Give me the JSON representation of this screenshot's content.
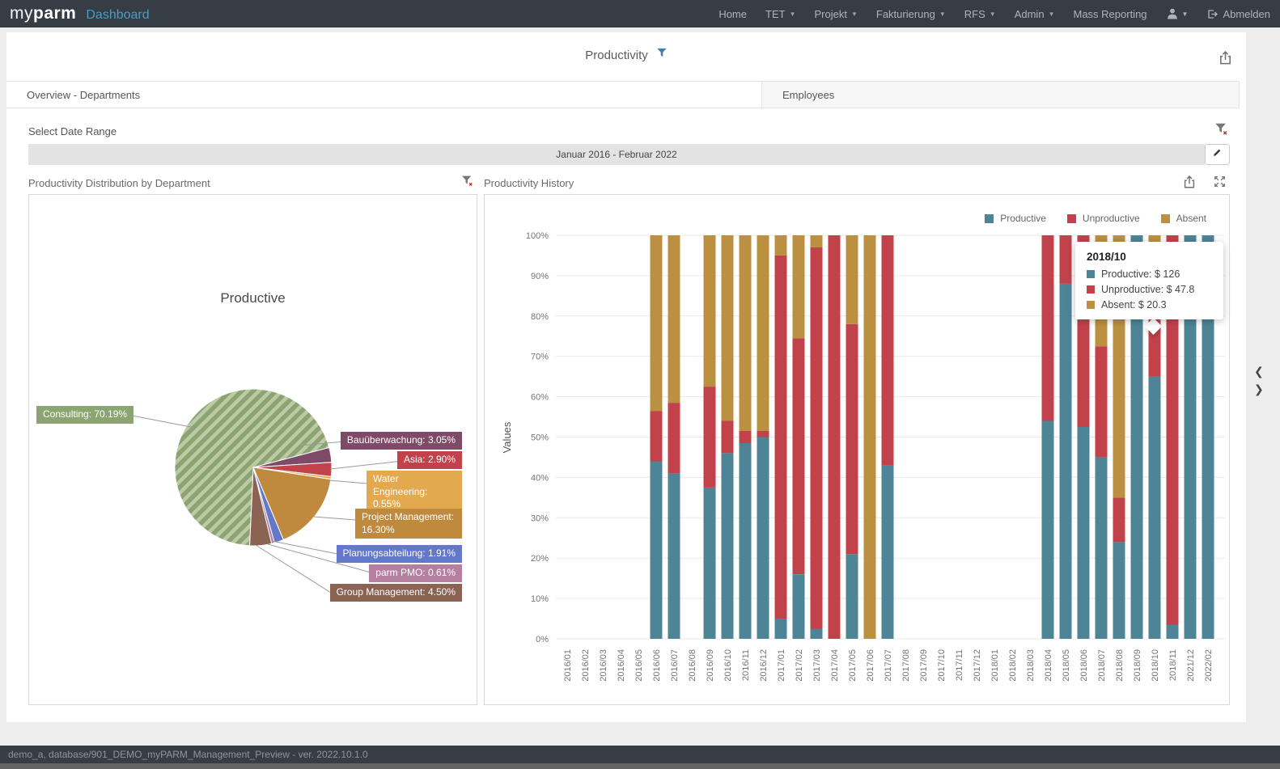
{
  "colors": {
    "navbar_bg": "#363d44",
    "accent_blue": "#4a9cc6",
    "productive": "#4d8496",
    "unproductive": "#c2424c",
    "absent": "#bb9040",
    "grid": "#e9e9e9"
  },
  "navbar": {
    "logo_my": "my",
    "logo_parm": "parm",
    "logo_product": "Dashboard",
    "items": [
      {
        "label": "Home",
        "caret": false
      },
      {
        "label": "TET",
        "caret": true
      },
      {
        "label": "Projekt",
        "caret": true
      },
      {
        "label": "Fakturierung",
        "caret": true
      },
      {
        "label": "RFS",
        "caret": true
      },
      {
        "label": "Admin",
        "caret": true
      },
      {
        "label": "Mass Reporting",
        "caret": false
      }
    ],
    "logout_label": "Abmelden"
  },
  "page": {
    "title": "Productivity"
  },
  "tabs": [
    {
      "label": "Overview - Departments",
      "active": true
    },
    {
      "label": "Employees",
      "active": false
    }
  ],
  "filter_bar": {
    "label": "Select Date Range",
    "value": "Januar 2016 - Februar 2022"
  },
  "panels": {
    "pie": {
      "title": "Productivity Distribution by Department"
    },
    "history": {
      "title": "Productivity History"
    }
  },
  "tooltip": {
    "title": "2018/10",
    "rows": [
      {
        "text": "Productive: $ 126",
        "color": "#4d8496"
      },
      {
        "text": "Unproductive: $ 47.8",
        "color": "#c2424c"
      },
      {
        "text": "Absent: $ 20.3",
        "color": "#bb9040"
      }
    ]
  },
  "side_nav": {
    "prev": "❮",
    "next": "❯"
  },
  "status_bar": {
    "text": "demo_a, database/901_DEMO_myPARM_Management_Preview - ver. 2022.10.1.0"
  },
  "chart_data": [
    {
      "type": "pie",
      "title": "Productive",
      "start_angle_deg_cw_from_top": 75.3,
      "slices": [
        {
          "name": "Bauüberwachung",
          "pct": 3.05,
          "label": "Bauüberwachung: 3.05%",
          "color": "#7e4a67"
        },
        {
          "name": "Asia",
          "pct": 2.9,
          "label": "Asia: 2.90%",
          "color": "#c2424c"
        },
        {
          "name": "Water Engineering",
          "pct": 0.55,
          "label": "Water Engineering: 0.55%",
          "color": "#e2a94f"
        },
        {
          "name": "Project Management",
          "pct": 16.3,
          "label": "Project Management: 16.30%",
          "color": "#c08a3e"
        },
        {
          "name": "Planungsabteilung",
          "pct": 1.91,
          "label": "Planungsabteilung: 1.91%",
          "color": "#6378c8"
        },
        {
          "name": "parm PMO",
          "pct": 0.61,
          "label": "parm PMO: 0.61%",
          "color": "#b57fa0"
        },
        {
          "name": "Group Management",
          "pct": 4.5,
          "label": "Group Management: 4.50%",
          "color": "#8a6352"
        },
        {
          "name": "Consulting",
          "pct": 70.19,
          "label": "Consulting: 70.19%",
          "color": "#8ba471",
          "hatch": true,
          "hatch_color": "#bccaa5"
        }
      ]
    },
    {
      "type": "bar",
      "stacked": true,
      "normalized_percent": true,
      "title": "Productivity History",
      "ylabel": "Values",
      "ylim": [
        0,
        100
      ],
      "ytick_step": 10,
      "ytick_suffix": "%",
      "legend_position": "top-right",
      "categories": [
        "2016/01",
        "2016/02",
        "2016/03",
        "2016/04",
        "2016/05",
        "2016/06",
        "2016/07",
        "2016/08",
        "2016/09",
        "2016/10",
        "2016/11",
        "2016/12",
        "2017/01",
        "2017/02",
        "2017/03",
        "2017/04",
        "2017/05",
        "2017/06",
        "2017/07",
        "2017/08",
        "2017/09",
        "2017/10",
        "2017/11",
        "2017/12",
        "2018/01",
        "2018/02",
        "2018/03",
        "2018/04",
        "2018/05",
        "2018/06",
        "2018/07",
        "2018/08",
        "2018/09",
        "2018/10",
        "2018/11",
        "2021/12",
        "2022/02"
      ],
      "series": [
        {
          "name": "Productive",
          "color": "#4d8496",
          "values": [
            0,
            0,
            0,
            0,
            0,
            44,
            41,
            0,
            37.5,
            46,
            48.5,
            50,
            5,
            16,
            2.5,
            0,
            21,
            0,
            43,
            0,
            0,
            0,
            0,
            0,
            0,
            0,
            0,
            54,
            88,
            52.5,
            45,
            24,
            100,
            65,
            3.5,
            100,
            100
          ]
        },
        {
          "name": "Unproductive",
          "color": "#c2424c",
          "values": [
            0,
            0,
            0,
            0,
            0,
            12.5,
            17.5,
            0,
            25,
            8,
            3,
            1.5,
            90,
            58.5,
            94.5,
            100,
            57,
            0,
            57,
            0,
            0,
            0,
            0,
            0,
            0,
            0,
            0,
            46,
            12,
            47.5,
            27.5,
            11,
            0,
            24.6,
            96.5,
            0,
            0
          ]
        },
        {
          "name": "Absent",
          "color": "#bb9040",
          "values": [
            0,
            0,
            0,
            0,
            0,
            43.5,
            41.5,
            0,
            37.5,
            46,
            48.5,
            48.5,
            5,
            25.5,
            3,
            0,
            22,
            100,
            0,
            0,
            0,
            0,
            0,
            0,
            0,
            0,
            0,
            0,
            0,
            0,
            27.5,
            65,
            0,
            10.4,
            0,
            0,
            0
          ]
        }
      ]
    }
  ]
}
